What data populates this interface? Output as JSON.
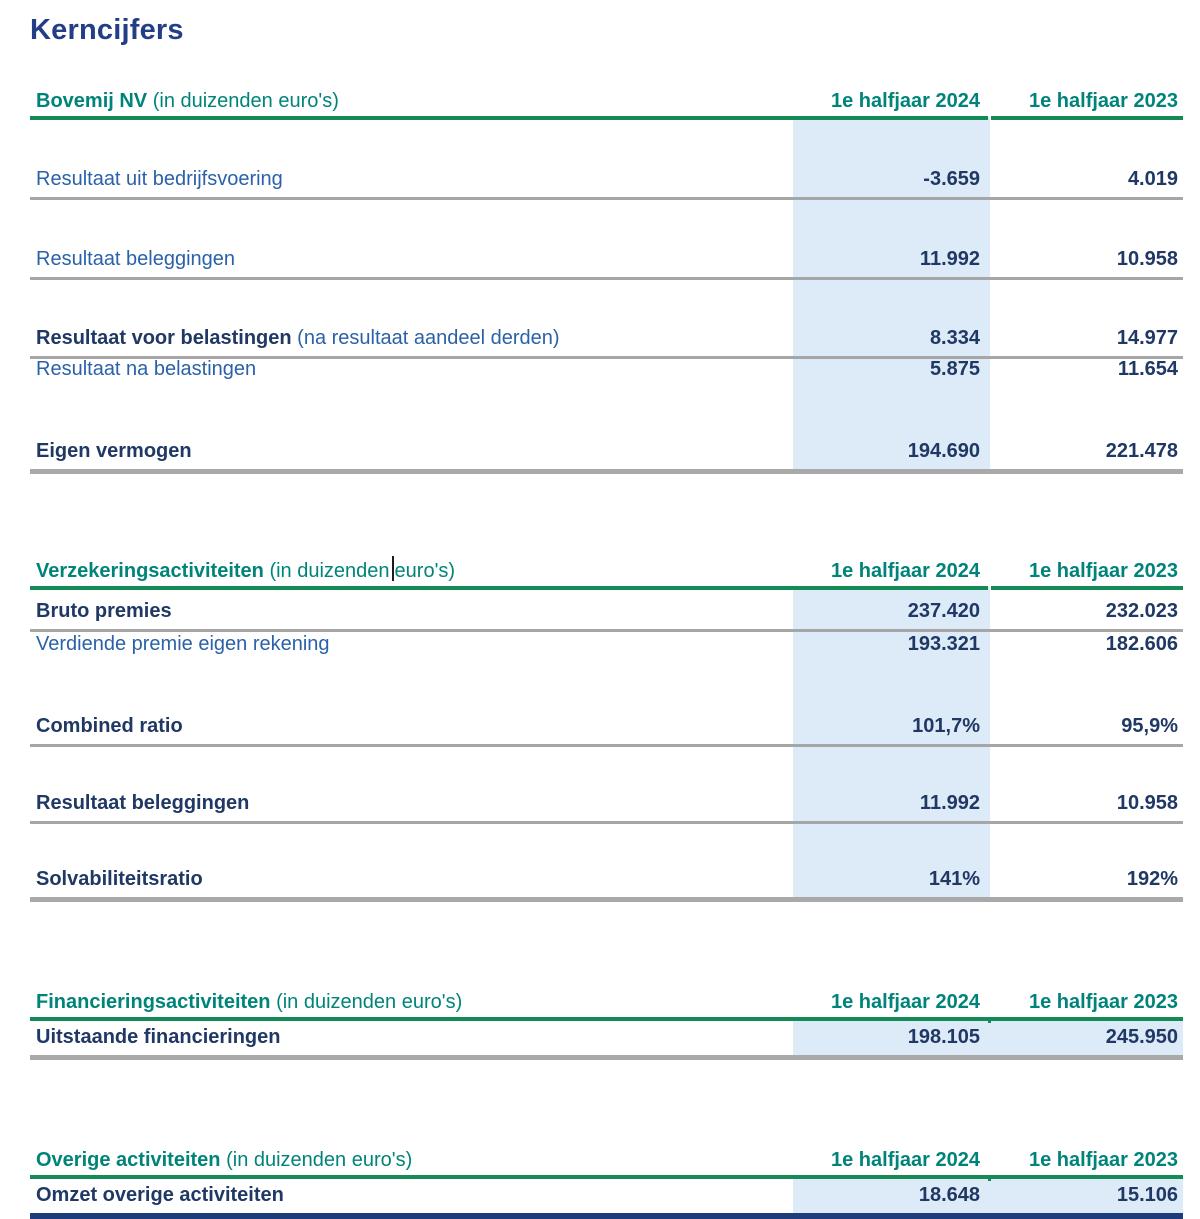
{
  "title": "Kerncijfers",
  "columns": {
    "h2024": "1e halfjaar 2024",
    "h2023": "1e halfjaar 2023"
  },
  "colors": {
    "title_navy": "#223E86",
    "header_teal": "#00847A",
    "underline_green": "#148B57",
    "label_blue": "#2A61A8",
    "value_navy": "#1F3864",
    "highlight_blue": "#DDEAF7",
    "separator_gray": "#A6A6A6",
    "bottom_navy": "#1E3B7C"
  },
  "tables": [
    {
      "name": "Bovemij NV",
      "unit": " (in duizenden euro's)",
      "rows": [
        {
          "label": "Resultaat uit bedrijfsvoering",
          "v2024": "-3.659",
          "v2023": "4.019"
        },
        {
          "label": "Resultaat beleggingen",
          "v2024": "11.992",
          "v2023": "10.958"
        },
        {
          "label": "Resultaat voor belastingen",
          "suffix": " (na resultaat aandeel derden)",
          "v2024": "8.334",
          "v2023": "14.977"
        },
        {
          "label": "Resultaat na belastingen",
          "v2024": "5.875",
          "v2023": "11.654"
        },
        {
          "label": "Eigen vermogen",
          "v2024": "194.690",
          "v2023": "221.478"
        }
      ]
    },
    {
      "name": "Verzekeringsactiviteiten",
      "unit_left": " (in duizenden",
      "unit_right": "euro's)",
      "rows": [
        {
          "label": "Bruto premies",
          "v2024": "237.420",
          "v2023": "232.023"
        },
        {
          "label": "Verdiende premie eigen rekening",
          "v2024": "193.321",
          "v2023": "182.606"
        },
        {
          "label": "Combined ratio",
          "v2024": "101,7%",
          "v2023": "95,9%"
        },
        {
          "label": "Resultaat beleggingen",
          "v2024": "11.992",
          "v2023": "10.958"
        },
        {
          "label": "Solvabiliteitsratio",
          "v2024": "141%",
          "v2023": "192%"
        }
      ]
    },
    {
      "name": "Financieringsactiviteiten",
      "unit": " (in duizenden euro's)",
      "rows": [
        {
          "label": "Uitstaande financieringen",
          "v2024": "198.105",
          "v2023": "245.950"
        }
      ]
    },
    {
      "name": "Overige activiteiten",
      "unit": " (in duizenden euro's)",
      "rows": [
        {
          "label": "Omzet overige activiteiten",
          "v2024": "18.648",
          "v2023": "15.106"
        }
      ]
    }
  ]
}
